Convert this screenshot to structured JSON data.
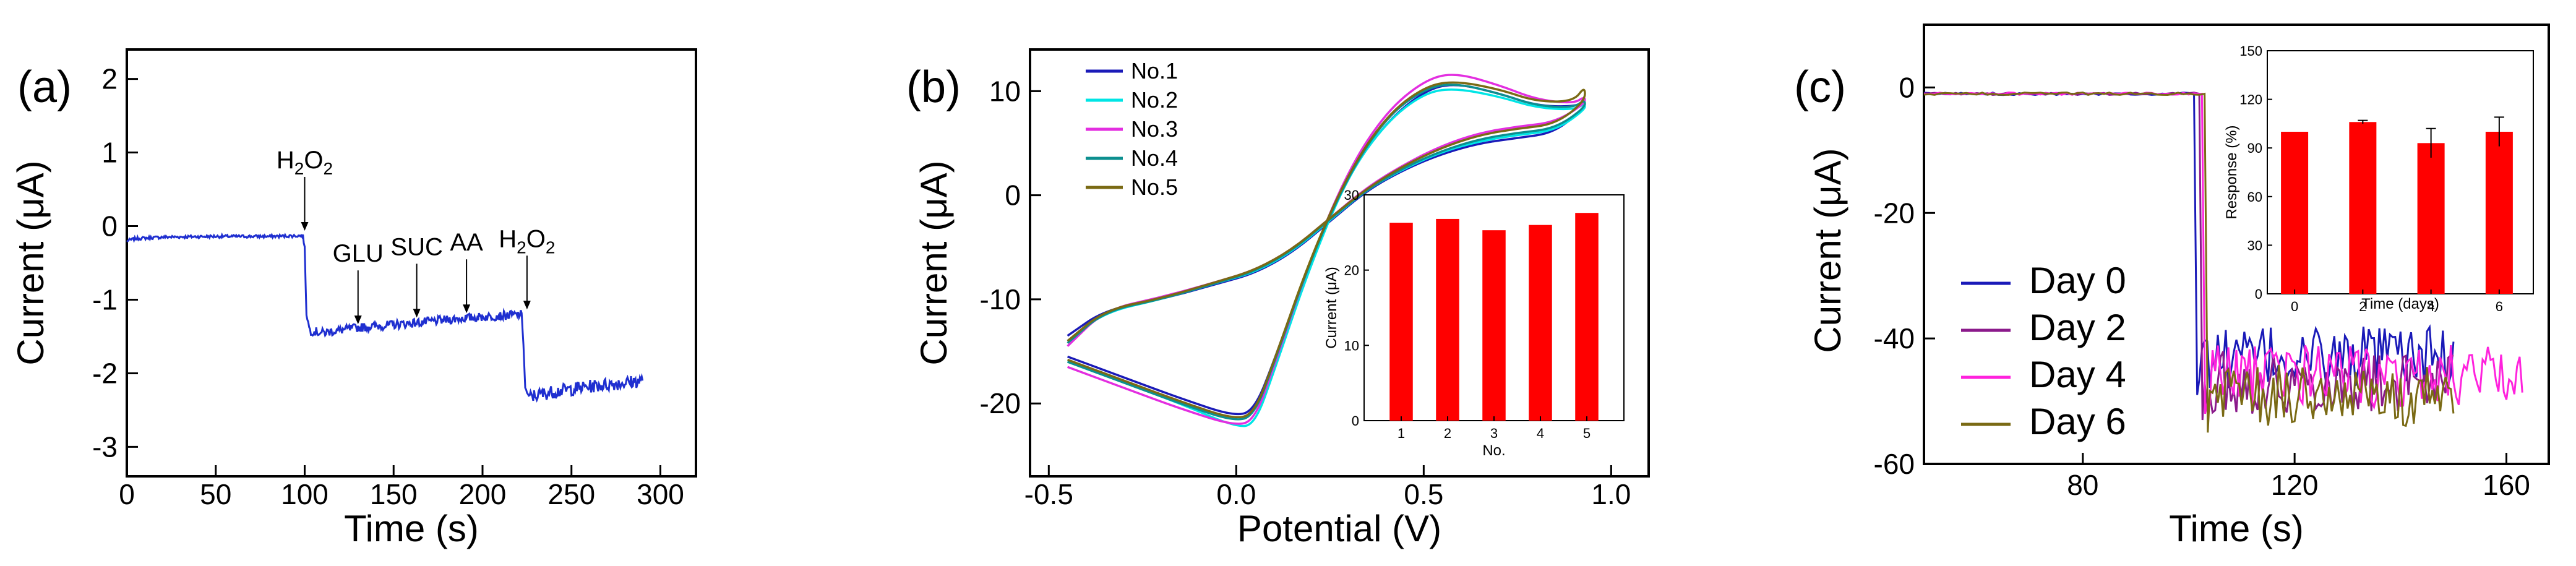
{
  "chart_data": [
    {
      "panel": "(a)",
      "type": "line",
      "xlabel": "Time (s)",
      "ylabel": "Current (μA)",
      "xlim": [
        0,
        320
      ],
      "ylim": [
        -3.4,
        2.4
      ],
      "xticks": [
        "0",
        "50",
        "100",
        "150",
        "200",
        "250",
        "300"
      ],
      "yticks": [
        "2",
        "1",
        "0",
        "-1",
        "-2",
        "-3"
      ],
      "color": "#1f2fd0",
      "series": [
        {
          "name": "trace",
          "x": [
            0,
            5,
            20,
            50,
            80,
            99,
            100,
            101,
            103,
            110,
            130,
            160,
            190,
            222,
            223,
            224,
            226,
            240,
            260,
            290
          ],
          "y": [
            -0.2,
            -0.17,
            -0.15,
            -0.14,
            -0.14,
            -0.13,
            -0.3,
            -1.2,
            -1.42,
            -1.45,
            -1.38,
            -1.32,
            -1.25,
            -1.2,
            -1.6,
            -2.2,
            -2.32,
            -2.25,
            -2.18,
            -2.1
          ]
        }
      ],
      "annotations": [
        {
          "base": "H",
          "sub": "2",
          "tail": "O",
          "sub2": "2",
          "x": 100,
          "y": -0.13
        },
        {
          "text": "GLU",
          "x": 130,
          "y": -1.4
        },
        {
          "text": "SUC",
          "x": 163,
          "y": -1.31
        },
        {
          "text": "AA",
          "x": 191,
          "y": -1.25
        },
        {
          "base": "H",
          "sub": "2",
          "tail": "O",
          "sub2": "2",
          "x": 225,
          "y": -1.2
        }
      ]
    },
    {
      "panel": "(b)",
      "type": "line",
      "xlabel": "Potential (V)",
      "ylabel": "Current (μA)",
      "xlim": [
        -0.55,
        1.1
      ],
      "ylim": [
        -27,
        14
      ],
      "xticks": [
        "-0.5",
        "0.0",
        "0.5",
        "1.0"
      ],
      "yticks": [
        "10",
        "0",
        "-10",
        "-20"
      ],
      "legend": [
        "No.1",
        "No.2",
        "No.3",
        "No.4",
        "No.5"
      ],
      "series": [
        {
          "name": "No.1",
          "color": "#1a1ab8",
          "x_fwd": [
            -0.45,
            -0.3,
            -0.15,
            0.0,
            0.05,
            0.1,
            0.2,
            0.3,
            0.4,
            0.5,
            0.58,
            0.7,
            0.8,
            0.9,
            0.93
          ],
          "y_fwd": [
            -15.5,
            -17.5,
            -19.5,
            -21.3,
            -20.5,
            -16,
            -6,
            2,
            7,
            10,
            10.8,
            9.8,
            8.6,
            8.5,
            9
          ],
          "x_rev": [
            0.93,
            0.85,
            0.75,
            0.65,
            0.55,
            0.45,
            0.35,
            0.25,
            0.15,
            0.05,
            -0.05,
            -0.2,
            -0.35,
            -0.45
          ],
          "y_rev": [
            8.5,
            6,
            5.5,
            5,
            4,
            2.5,
            0.5,
            -2.5,
            -5.5,
            -7.5,
            -8.5,
            -10,
            -11,
            -13.5
          ]
        },
        {
          "name": "No.2",
          "color": "#00e5e5",
          "x_fwd": [
            -0.45,
            -0.3,
            -0.15,
            0.0,
            0.05,
            0.1,
            0.2,
            0.3,
            0.4,
            0.5,
            0.58,
            0.7,
            0.8,
            0.9,
            0.93
          ],
          "y_fwd": [
            -16,
            -18,
            -20,
            -22.3,
            -22,
            -17,
            -6.5,
            2,
            7,
            9.8,
            10.3,
            9.5,
            8.4,
            8.2,
            8.8
          ],
          "x_rev": [
            0.93,
            0.85,
            0.75,
            0.65,
            0.55,
            0.45,
            0.35,
            0.25,
            0.15,
            0.05,
            -0.05,
            -0.2,
            -0.35,
            -0.45
          ],
          "y_rev": [
            8.2,
            6.2,
            5.8,
            5.2,
            4.2,
            2.6,
            0.6,
            -2.4,
            -5.4,
            -7.4,
            -8.4,
            -10,
            -11.2,
            -14
          ]
        },
        {
          "name": "No.3",
          "color": "#e32ee0",
          "x_fwd": [
            -0.45,
            -0.3,
            -0.15,
            0.0,
            0.05,
            0.1,
            0.2,
            0.3,
            0.4,
            0.5,
            0.58,
            0.7,
            0.8,
            0.9,
            0.93
          ],
          "y_fwd": [
            -16.5,
            -18.5,
            -20.5,
            -22.2,
            -21.5,
            -16.5,
            -6,
            2.5,
            8,
            11,
            11.8,
            10.6,
            9.2,
            8.8,
            9.5
          ],
          "x_rev": [
            0.93,
            0.85,
            0.75,
            0.65,
            0.55,
            0.45,
            0.35,
            0.25,
            0.15,
            0.05,
            -0.05,
            -0.2,
            -0.35,
            -0.45
          ],
          "y_rev": [
            8.8,
            7,
            6.6,
            6,
            4.8,
            3,
            0.8,
            -2.2,
            -5.2,
            -7.2,
            -8.3,
            -9.8,
            -11,
            -14.5
          ]
        },
        {
          "name": "No.4",
          "color": "#0c8f8f",
          "x_fwd": [
            -0.45,
            -0.3,
            -0.15,
            0.0,
            0.05,
            0.1,
            0.2,
            0.3,
            0.4,
            0.5,
            0.58,
            0.7,
            0.8,
            0.9,
            0.93
          ],
          "y_fwd": [
            -16,
            -18,
            -20,
            -21.8,
            -21,
            -16.2,
            -6,
            2,
            7.5,
            10.2,
            10.8,
            9.8,
            8.6,
            8.4,
            9.2
          ],
          "x_rev": [
            0.93,
            0.85,
            0.75,
            0.65,
            0.55,
            0.45,
            0.35,
            0.25,
            0.15,
            0.05,
            -0.05,
            -0.2,
            -0.35,
            -0.45
          ],
          "y_rev": [
            8.4,
            6.4,
            6,
            5.4,
            4.3,
            2.7,
            0.6,
            -2.3,
            -5.3,
            -7.3,
            -8.4,
            -10,
            -11.1,
            -14.2
          ]
        },
        {
          "name": "No.5",
          "color": "#7a6a14",
          "x_fwd": [
            -0.45,
            -0.3,
            -0.15,
            0.0,
            0.05,
            0.1,
            0.2,
            0.3,
            0.4,
            0.5,
            0.58,
            0.7,
            0.8,
            0.9,
            0.93
          ],
          "y_fwd": [
            -15.8,
            -17.8,
            -19.8,
            -21.6,
            -20.8,
            -16,
            -5.8,
            2.2,
            7.6,
            10.4,
            11,
            10.2,
            9,
            9,
            10.5
          ],
          "x_rev": [
            0.93,
            0.85,
            0.75,
            0.65,
            0.55,
            0.45,
            0.35,
            0.25,
            0.15,
            0.05,
            -0.05,
            -0.2,
            -0.35,
            -0.45
          ],
          "y_rev": [
            9,
            6.8,
            6.4,
            5.8,
            4.6,
            2.9,
            0.7,
            -2.2,
            -5.2,
            -7.2,
            -8.3,
            -9.9,
            -11,
            -14
          ]
        }
      ],
      "inset": {
        "type": "bar",
        "ylabel": "Current (μA)",
        "xlabel": "No.",
        "categories": [
          "1",
          "2",
          "3",
          "4",
          "5"
        ],
        "values": [
          26.3,
          26.8,
          25.3,
          26,
          27.6
        ],
        "ylim": [
          0,
          30
        ],
        "yticks": [
          "0",
          "10",
          "20",
          "30"
        ],
        "color": "#ff0000"
      }
    },
    {
      "panel": "(c)",
      "type": "line",
      "xlabel": "Time (s)",
      "ylabel": "Current (μA)",
      "xlim": [
        50,
        168
      ],
      "ylim": [
        -60,
        10
      ],
      "xticks": [
        "80",
        "120",
        "160"
      ],
      "yticks": [
        "0",
        "-20",
        "-40",
        "-60"
      ],
      "legend": [
        "Day 0",
        "Day 2",
        "Day 4",
        "Day 6"
      ],
      "series": [
        {
          "name": "Day 0",
          "color": "#1a1ab8",
          "drop_at": 101,
          "start": -1,
          "noise_mean": -43,
          "end": 150
        },
        {
          "name": "Day 2",
          "color": "#8b1a8b",
          "drop_at": 102,
          "start": -1,
          "noise_mean": -47,
          "end": 150
        },
        {
          "name": "Day 4",
          "color": "#ff22dd",
          "drop_at": 102.5,
          "start": -1,
          "noise_mean": -46,
          "end": 163
        },
        {
          "name": "Day 6",
          "color": "#7a6a14",
          "drop_at": 103,
          "start": -1,
          "noise_mean": -49,
          "end": 150
        }
      ],
      "inset": {
        "type": "bar",
        "ylabel": "Response (%)",
        "xlabel": "Time (days)",
        "x": [
          0,
          2,
          4,
          6
        ],
        "xticks": [
          "0",
          "2",
          "4",
          "6"
        ],
        "values": [
          100,
          106,
          93,
          100
        ],
        "errors": [
          0,
          1,
          9,
          9
        ],
        "ylim": [
          0,
          150
        ],
        "yticks": [
          "0",
          "30",
          "60",
          "90",
          "120",
          "150"
        ],
        "color": "#ff0000"
      }
    }
  ]
}
